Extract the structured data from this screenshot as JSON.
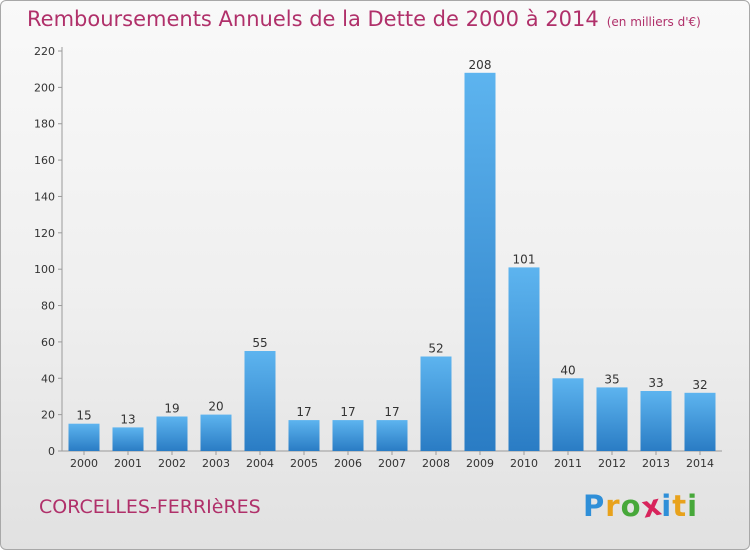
{
  "chart_data": {
    "type": "bar",
    "title": "Remboursements Annuels de la Dette de 2000 à 2014",
    "subtitle": "(en milliers d'€)",
    "categories": [
      "2000",
      "2001",
      "2002",
      "2003",
      "2004",
      "2005",
      "2006",
      "2007",
      "2008",
      "2009",
      "2010",
      "2011",
      "2012",
      "2013",
      "2014"
    ],
    "values": [
      15,
      13,
      19,
      20,
      55,
      17,
      17,
      17,
      52,
      208,
      101,
      40,
      35,
      33,
      32
    ],
    "ylim": [
      0,
      220
    ],
    "yticks": [
      0,
      20,
      40,
      60,
      80,
      100,
      120,
      140,
      160,
      180,
      200,
      220
    ],
    "grid": false,
    "bar_color": "#3a8fd6"
  },
  "footer": {
    "commune": "CORCELLES-FERRIèRES",
    "brand": "Proxiti",
    "brand_colors": [
      "#2f8fd8",
      "#e8a21c",
      "#47a83a",
      "#d8245c",
      "#2f8fd8",
      "#e8a21c",
      "#47a83a"
    ]
  }
}
